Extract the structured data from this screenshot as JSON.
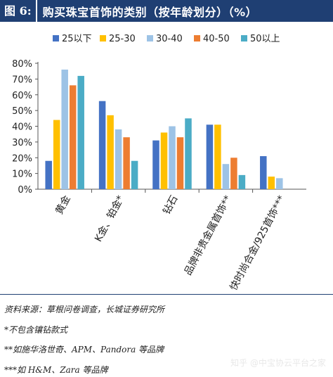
{
  "header": {
    "fig_label": "图 6:",
    "title": "购买珠宝首饰的类别（按年龄划分）（%）"
  },
  "chart_data": {
    "type": "bar",
    "categories": [
      "黄金",
      "K金、铂金*",
      "钻石",
      "品牌非贵金属首饰**",
      "快时尚合金/925首饰***"
    ],
    "series": [
      {
        "name": "25以下",
        "color": "#4472c4",
        "values": [
          18,
          56,
          31,
          41,
          21
        ]
      },
      {
        "name": "25-30",
        "color": "#ffc000",
        "values": [
          44,
          47,
          36,
          41,
          8
        ]
      },
      {
        "name": "30-40",
        "color": "#9dc3e6",
        "values": [
          76,
          38,
          40,
          16,
          7
        ]
      },
      {
        "name": "40-50",
        "color": "#ed7d31",
        "values": [
          66,
          33,
          33,
          20,
          0
        ]
      },
      {
        "name": "50以上",
        "color": "#4bacc6",
        "values": [
          72,
          18,
          45,
          9,
          0
        ]
      }
    ],
    "ylim": [
      0,
      80
    ],
    "yticks": [
      "0%",
      "10%",
      "20%",
      "30%",
      "40%",
      "50%",
      "60%",
      "70%",
      "80%"
    ],
    "legend_position": "top",
    "grid": false
  },
  "notes": [
    "资料来源：草根问卷调查，长城证券研究所",
    "*不包含镶钻款式",
    "**如施华洛世奇、APM、Pandora 等品牌",
    "***如 H&M、Zara 等品牌"
  ],
  "watermark": "知乎 @中宝协云平台之家"
}
